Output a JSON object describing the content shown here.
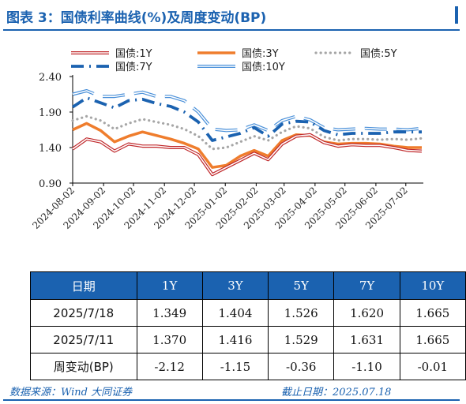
{
  "title": "图表 3：国债利率曲线(%)及周度变动(BP)",
  "chart_data": {
    "type": "line",
    "x": [
      "2024-08-02",
      "2024-08-16",
      "2024-08-30",
      "2024-09-13",
      "2024-09-27",
      "2024-10-11",
      "2024-10-25",
      "2024-11-08",
      "2024-11-22",
      "2024-12-06",
      "2024-12-20",
      "2025-01-03",
      "2025-01-17",
      "2025-01-31",
      "2025-02-14",
      "2025-02-28",
      "2025-03-14",
      "2025-03-28",
      "2025-04-11",
      "2025-04-25",
      "2025-05-09",
      "2025-05-23",
      "2025-06-06",
      "2025-06-20",
      "2025-07-04",
      "2025-07-18"
    ],
    "x_ticks": [
      "2024-08-02",
      "2024-09-02",
      "2024-10-02",
      "2024-11-02",
      "2024-12-02",
      "2025-01-02",
      "2025-02-02",
      "2025-03-02",
      "2025-04-02",
      "2025-05-02",
      "2025-06-02",
      "2025-07-02"
    ],
    "y_ticks": [
      "0.90",
      "1.40",
      "1.90",
      "2.40"
    ],
    "ylim": [
      0.9,
      2.4
    ],
    "xlabel": "",
    "ylabel": "",
    "legend_position": "top",
    "series": [
      {
        "name": "国债:1Y",
        "style": "red-double",
        "color": "#c0282b",
        "values": [
          1.38,
          1.52,
          1.48,
          1.35,
          1.45,
          1.42,
          1.42,
          1.4,
          1.4,
          1.3,
          1.02,
          1.12,
          1.22,
          1.32,
          1.23,
          1.45,
          1.56,
          1.58,
          1.47,
          1.42,
          1.44,
          1.43,
          1.43,
          1.4,
          1.36,
          1.35
        ]
      },
      {
        "name": "国债:3Y",
        "style": "orange-thick",
        "color": "#ef7d2d",
        "values": [
          1.65,
          1.74,
          1.64,
          1.48,
          1.56,
          1.62,
          1.57,
          1.52,
          1.46,
          1.38,
          1.12,
          1.15,
          1.28,
          1.36,
          1.28,
          1.5,
          1.58,
          1.57,
          1.48,
          1.45,
          1.46,
          1.46,
          1.45,
          1.42,
          1.4,
          1.4
        ]
      },
      {
        "name": "国债:5Y",
        "style": "grey-dotted",
        "color": "#a6a6a6",
        "values": [
          1.78,
          1.84,
          1.78,
          1.66,
          1.74,
          1.8,
          1.76,
          1.72,
          1.66,
          1.56,
          1.38,
          1.4,
          1.48,
          1.56,
          1.5,
          1.62,
          1.7,
          1.67,
          1.55,
          1.5,
          1.52,
          1.52,
          1.51,
          1.52,
          1.51,
          1.53
        ]
      },
      {
        "name": "国债:7Y",
        "style": "blue-dashdot",
        "color": "#1b62b0",
        "values": [
          1.97,
          2.1,
          2.03,
          1.96,
          2.06,
          2.08,
          2.02,
          1.98,
          1.9,
          1.76,
          1.5,
          1.55,
          1.6,
          1.68,
          1.56,
          1.73,
          1.77,
          1.76,
          1.64,
          1.58,
          1.6,
          1.6,
          1.6,
          1.62,
          1.62,
          1.62
        ]
      },
      {
        "name": "国债:10Y",
        "style": "blue-double",
        "color": "#4a90d9",
        "values": [
          2.15,
          2.2,
          2.12,
          2.12,
          2.15,
          2.18,
          2.12,
          2.12,
          2.06,
          1.9,
          1.66,
          1.64,
          1.65,
          1.72,
          1.64,
          1.78,
          1.84,
          1.79,
          1.68,
          1.65,
          1.66,
          1.67,
          1.66,
          1.66,
          1.65,
          1.67
        ]
      }
    ]
  },
  "table": {
    "headers": [
      "日期",
      "1Y",
      "3Y",
      "5Y",
      "7Y",
      "10Y"
    ],
    "rows": [
      [
        "2025/7/18",
        "1.349",
        "1.404",
        "1.526",
        "1.620",
        "1.665"
      ],
      [
        "2025/7/11",
        "1.370",
        "1.416",
        "1.529",
        "1.631",
        "1.665"
      ],
      [
        "周变动(BP)",
        "-2.12",
        "-1.15",
        "-0.36",
        "-1.10",
        "-0.01"
      ]
    ]
  },
  "footer": {
    "source": "数据来源：Wind 大同证券",
    "cutoff": "截止日期：2025.07.18"
  }
}
